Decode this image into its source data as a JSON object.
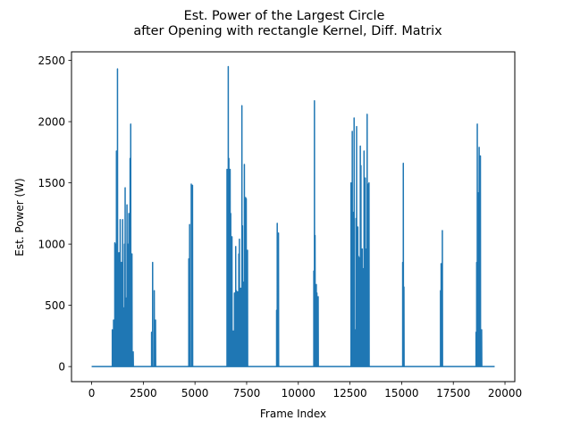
{
  "chart_data": {
    "type": "line",
    "title_lines": [
      "Est. Power of the Largest Circle",
      "after Opening with rectangle Kernel, Diff. Matrix"
    ],
    "xlabel": "Frame Index",
    "ylabel": "Est. Power (W)",
    "xlim": [
      -975,
      20475
    ],
    "ylim": [
      -123,
      2570
    ],
    "x_ticks": [
      0,
      2500,
      5000,
      7500,
      10000,
      12500,
      15000,
      17500,
      20000
    ],
    "x_tick_labels": [
      "0",
      "2500",
      "5000",
      "7500",
      "10000",
      "12500",
      "15000",
      "17500",
      "20000"
    ],
    "y_ticks": [
      0,
      500,
      1000,
      1500,
      2000,
      2500
    ],
    "y_tick_labels": [
      "0",
      "500",
      "1000",
      "1500",
      "2000",
      "2500"
    ],
    "grid": false,
    "legend": false,
    "series_color": "#1f77b4",
    "x_range": [
      0,
      19500
    ],
    "baseline": 0,
    "spikes": [
      [
        1000,
        300
      ],
      [
        1030,
        80
      ],
      [
        1060,
        380
      ],
      [
        1090,
        0
      ],
      [
        1120,
        1010
      ],
      [
        1140,
        0
      ],
      [
        1170,
        1000
      ],
      [
        1200,
        1760
      ],
      [
        1220,
        0
      ],
      [
        1250,
        2430
      ],
      [
        1265,
        0
      ],
      [
        1290,
        900
      ],
      [
        1320,
        930
      ],
      [
        1350,
        0
      ],
      [
        1380,
        1200
      ],
      [
        1410,
        380
      ],
      [
        1440,
        850
      ],
      [
        1470,
        0
      ],
      [
        1500,
        1200
      ],
      [
        1530,
        0
      ],
      [
        1560,
        480
      ],
      [
        1590,
        1000
      ],
      [
        1620,
        1460
      ],
      [
        1650,
        0
      ],
      [
        1680,
        560
      ],
      [
        1710,
        1320
      ],
      [
        1740,
        0
      ],
      [
        1770,
        1000
      ],
      [
        1800,
        1250
      ],
      [
        1830,
        0
      ],
      [
        1860,
        1700
      ],
      [
        1890,
        1980
      ],
      [
        1920,
        0
      ],
      [
        1950,
        920
      ],
      [
        1980,
        0
      ],
      [
        2010,
        120
      ],
      [
        2040,
        0
      ],
      [
        2900,
        280
      ],
      [
        2950,
        850
      ],
      [
        3000,
        0
      ],
      [
        3030,
        620
      ],
      [
        3060,
        0
      ],
      [
        3090,
        380
      ],
      [
        3120,
        0
      ],
      [
        4700,
        880
      ],
      [
        4740,
        1160
      ],
      [
        4780,
        0
      ],
      [
        4820,
        1490
      ],
      [
        4850,
        0
      ],
      [
        4880,
        1480
      ],
      [
        4910,
        0
      ],
      [
        6550,
        1610
      ],
      [
        6580,
        0
      ],
      [
        6610,
        2450
      ],
      [
        6640,
        1700
      ],
      [
        6670,
        0
      ],
      [
        6700,
        1610
      ],
      [
        6730,
        1250
      ],
      [
        6760,
        0
      ],
      [
        6790,
        1060
      ],
      [
        6820,
        0
      ],
      [
        6850,
        290
      ],
      [
        6880,
        0
      ],
      [
        6910,
        600
      ],
      [
        6940,
        0
      ],
      [
        6970,
        980
      ],
      [
        7000,
        620
      ],
      [
        7030,
        0
      ],
      [
        7060,
        610
      ],
      [
        7090,
        0
      ],
      [
        7120,
        920
      ],
      [
        7150,
        1040
      ],
      [
        7180,
        0
      ],
      [
        7210,
        640
      ],
      [
        7240,
        0
      ],
      [
        7270,
        2130
      ],
      [
        7300,
        1150
      ],
      [
        7330,
        0
      ],
      [
        7360,
        690
      ],
      [
        7390,
        1650
      ],
      [
        7420,
        0
      ],
      [
        7450,
        1380
      ],
      [
        7480,
        1370
      ],
      [
        7510,
        0
      ],
      [
        7540,
        950
      ],
      [
        7570,
        0
      ],
      [
        8950,
        460
      ],
      [
        8980,
        1170
      ],
      [
        9010,
        0
      ],
      [
        9040,
        1090
      ],
      [
        9070,
        0
      ],
      [
        10750,
        780
      ],
      [
        10780,
        2170
      ],
      [
        10810,
        1070
      ],
      [
        10840,
        0
      ],
      [
        10870,
        670
      ],
      [
        10900,
        600
      ],
      [
        10930,
        0
      ],
      [
        10960,
        570
      ],
      [
        10990,
        0
      ],
      [
        12550,
        1500
      ],
      [
        12580,
        0
      ],
      [
        12610,
        1920
      ],
      [
        12640,
        1260
      ],
      [
        12670,
        0
      ],
      [
        12700,
        2030
      ],
      [
        12730,
        300
      ],
      [
        12760,
        0
      ],
      [
        12790,
        1210
      ],
      [
        12820,
        1960
      ],
      [
        12850,
        0
      ],
      [
        12880,
        1140
      ],
      [
        12910,
        900
      ],
      [
        12940,
        890
      ],
      [
        12970,
        0
      ],
      [
        13000,
        1800
      ],
      [
        13030,
        1640
      ],
      [
        13060,
        0
      ],
      [
        13090,
        960
      ],
      [
        13120,
        0
      ],
      [
        13150,
        800
      ],
      [
        13180,
        1760
      ],
      [
        13210,
        0
      ],
      [
        13240,
        1540
      ],
      [
        13270,
        960
      ],
      [
        13300,
        0
      ],
      [
        13330,
        2060
      ],
      [
        13360,
        1490
      ],
      [
        13390,
        0
      ],
      [
        13420,
        1500
      ],
      [
        13450,
        0
      ],
      [
        15050,
        850
      ],
      [
        15080,
        1660
      ],
      [
        15110,
        650
      ],
      [
        15140,
        0
      ],
      [
        16880,
        620
      ],
      [
        16910,
        840
      ],
      [
        16940,
        0
      ],
      [
        16970,
        1110
      ],
      [
        17000,
        0
      ],
      [
        18600,
        280
      ],
      [
        18630,
        850
      ],
      [
        18660,
        1980
      ],
      [
        18690,
        1420
      ],
      [
        18720,
        0
      ],
      [
        18750,
        1790
      ],
      [
        18780,
        1720
      ],
      [
        18810,
        1720
      ],
      [
        18840,
        0
      ],
      [
        18870,
        300
      ],
      [
        18900,
        0
      ]
    ]
  }
}
